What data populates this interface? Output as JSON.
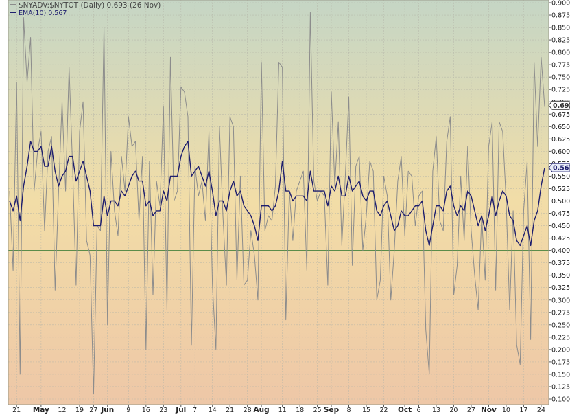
{
  "legend": {
    "raw": {
      "label": "$NYADV:$NYTOT (Daily) 0.693 (26 Nov)",
      "color": "#8c8c8c"
    },
    "ema": {
      "label": "EMA(10) 0.567",
      "color": "#1e1e6e"
    }
  },
  "last_labels": {
    "raw": "0.693",
    "ema": "0.567"
  },
  "colors": {
    "background_top": "#c5d6c5",
    "background_mid": "#f2dda7",
    "background_bottom": "#eec7a7",
    "upper_line": "#d23c32",
    "lower_line": "#46823c",
    "raw_line": "#8c8c8c",
    "ema_line": "#1e1e6e",
    "grid": "#b4b4a8"
  },
  "chart_data": {
    "type": "line",
    "title": "",
    "xlabel": "",
    "ylabel": "",
    "ylim": [
      0.1,
      0.9
    ],
    "grid": true,
    "legend_position": "top-left",
    "y_ticks": [
      "0.900",
      "0.875",
      "0.850",
      "0.825",
      "0.800",
      "0.775",
      "0.750",
      "0.725",
      "0.700",
      "0.675",
      "0.650",
      "0.625",
      "0.600",
      "0.575",
      "0.550",
      "0.525",
      "0.500",
      "0.475",
      "0.450",
      "0.425",
      "0.400",
      "0.375",
      "0.350",
      "0.325",
      "0.300",
      "0.275",
      "0.250",
      "0.225",
      "0.200",
      "0.175",
      "0.150",
      "0.125",
      "0.100"
    ],
    "x_ticks": [
      {
        "label": "21",
        "bold": false,
        "index": 2
      },
      {
        "label": "May",
        "bold": true,
        "index": 9
      },
      {
        "label": "12",
        "bold": false,
        "index": 15
      },
      {
        "label": "19",
        "bold": false,
        "index": 20
      },
      {
        "label": "27",
        "bold": false,
        "index": 24
      },
      {
        "label": "Jun",
        "bold": true,
        "index": 28
      },
      {
        "label": "9",
        "bold": false,
        "index": 34
      },
      {
        "label": "16",
        "bold": false,
        "index": 39
      },
      {
        "label": "23",
        "bold": false,
        "index": 44
      },
      {
        "label": "Jul",
        "bold": true,
        "index": 49
      },
      {
        "label": "7",
        "bold": false,
        "index": 53
      },
      {
        "label": "14",
        "bold": false,
        "index": 58
      },
      {
        "label": "21",
        "bold": false,
        "index": 63
      },
      {
        "label": "28",
        "bold": false,
        "index": 68
      },
      {
        "label": "Aug",
        "bold": true,
        "index": 72
      },
      {
        "label": "11",
        "bold": false,
        "index": 78
      },
      {
        "label": "18",
        "bold": false,
        "index": 83
      },
      {
        "label": "25",
        "bold": false,
        "index": 88
      },
      {
        "label": "Sep",
        "bold": true,
        "index": 92
      },
      {
        "label": "8",
        "bold": false,
        "index": 97
      },
      {
        "label": "15",
        "bold": false,
        "index": 102
      },
      {
        "label": "22",
        "bold": false,
        "index": 107
      },
      {
        "label": "Oct",
        "bold": true,
        "index": 113
      },
      {
        "label": "6",
        "bold": false,
        "index": 117
      },
      {
        "label": "13",
        "bold": false,
        "index": 122
      },
      {
        "label": "20",
        "bold": false,
        "index": 127
      },
      {
        "label": "27",
        "bold": false,
        "index": 132
      },
      {
        "label": "Nov",
        "bold": true,
        "index": 137
      },
      {
        "label": "10",
        "bold": false,
        "index": 142
      },
      {
        "label": "17",
        "bold": false,
        "index": 147
      },
      {
        "label": "24",
        "bold": false,
        "index": 152
      }
    ],
    "horizontal_lines": [
      {
        "value": 0.615,
        "color": "upper_line"
      },
      {
        "value": 0.4,
        "color": "lower_line"
      }
    ],
    "series": [
      {
        "legend_key": "raw",
        "values": [
          0.52,
          0.36,
          0.74,
          0.15,
          0.87,
          0.74,
          0.83,
          0.52,
          0.6,
          0.64,
          0.44,
          0.6,
          0.63,
          0.32,
          0.52,
          0.7,
          0.52,
          0.77,
          0.57,
          0.33,
          0.64,
          0.7,
          0.42,
          0.39,
          0.11,
          0.45,
          0.44,
          0.85,
          0.25,
          0.6,
          0.48,
          0.43,
          0.59,
          0.52,
          0.67,
          0.61,
          0.62,
          0.46,
          0.59,
          0.2,
          0.58,
          0.31,
          0.54,
          0.49,
          0.69,
          0.28,
          0.79,
          0.5,
          0.52,
          0.73,
          0.72,
          0.67,
          0.21,
          0.57,
          0.51,
          0.54,
          0.46,
          0.64,
          0.33,
          0.2,
          0.65,
          0.47,
          0.33,
          0.67,
          0.65,
          0.34,
          0.55,
          0.33,
          0.34,
          0.44,
          0.39,
          0.3,
          0.78,
          0.44,
          0.47,
          0.46,
          0.53,
          0.78,
          0.77,
          0.26,
          0.52,
          0.42,
          0.52,
          0.54,
          0.56,
          0.36,
          0.88,
          0.54,
          0.5,
          0.52,
          0.51,
          0.33,
          0.72,
          0.53,
          0.66,
          0.41,
          0.55,
          0.71,
          0.37,
          0.57,
          0.59,
          0.4,
          0.47,
          0.58,
          0.56,
          0.3,
          0.34,
          0.55,
          0.51,
          0.3,
          0.4,
          0.54,
          0.59,
          0.43,
          0.56,
          0.55,
          0.45,
          0.51,
          0.52,
          0.24,
          0.15,
          0.56,
          0.63,
          0.46,
          0.44,
          0.62,
          0.67,
          0.31,
          0.37,
          0.55,
          0.42,
          0.61,
          0.44,
          0.35,
          0.28,
          0.47,
          0.34,
          0.61,
          0.66,
          0.32,
          0.66,
          0.64,
          0.5,
          0.28,
          0.48,
          0.21,
          0.17,
          0.48,
          0.58,
          0.22,
          0.78,
          0.61,
          0.79,
          0.69
        ],
        "last_value": 0.693
      },
      {
        "legend_key": "ema",
        "values": [
          0.5,
          0.48,
          0.51,
          0.46,
          0.53,
          0.57,
          0.62,
          0.6,
          0.6,
          0.61,
          0.57,
          0.57,
          0.61,
          0.56,
          0.53,
          0.55,
          0.56,
          0.59,
          0.59,
          0.54,
          0.56,
          0.58,
          0.55,
          0.52,
          0.45,
          0.45,
          0.45,
          0.51,
          0.47,
          0.5,
          0.5,
          0.49,
          0.52,
          0.51,
          0.53,
          0.55,
          0.56,
          0.54,
          0.54,
          0.49,
          0.5,
          0.47,
          0.48,
          0.48,
          0.52,
          0.5,
          0.55,
          0.55,
          0.55,
          0.59,
          0.61,
          0.62,
          0.55,
          0.56,
          0.57,
          0.55,
          0.53,
          0.56,
          0.52,
          0.47,
          0.5,
          0.5,
          0.48,
          0.52,
          0.54,
          0.51,
          0.52,
          0.49,
          0.48,
          0.47,
          0.45,
          0.42,
          0.49,
          0.49,
          0.49,
          0.48,
          0.49,
          0.52,
          0.58,
          0.52,
          0.52,
          0.5,
          0.51,
          0.51,
          0.51,
          0.5,
          0.56,
          0.52,
          0.52,
          0.52,
          0.52,
          0.49,
          0.53,
          0.52,
          0.55,
          0.51,
          0.51,
          0.55,
          0.52,
          0.53,
          0.54,
          0.51,
          0.5,
          0.52,
          0.52,
          0.48,
          0.47,
          0.49,
          0.5,
          0.47,
          0.44,
          0.45,
          0.48,
          0.47,
          0.47,
          0.48,
          0.49,
          0.49,
          0.5,
          0.44,
          0.41,
          0.45,
          0.49,
          0.49,
          0.48,
          0.52,
          0.53,
          0.49,
          0.47,
          0.49,
          0.48,
          0.52,
          0.51,
          0.48,
          0.45,
          0.47,
          0.44,
          0.47,
          0.51,
          0.47,
          0.5,
          0.52,
          0.51,
          0.47,
          0.46,
          0.42,
          0.41,
          0.43,
          0.45,
          0.41,
          0.46,
          0.48,
          0.53,
          0.567
        ],
        "last_value": 0.567
      }
    ]
  }
}
